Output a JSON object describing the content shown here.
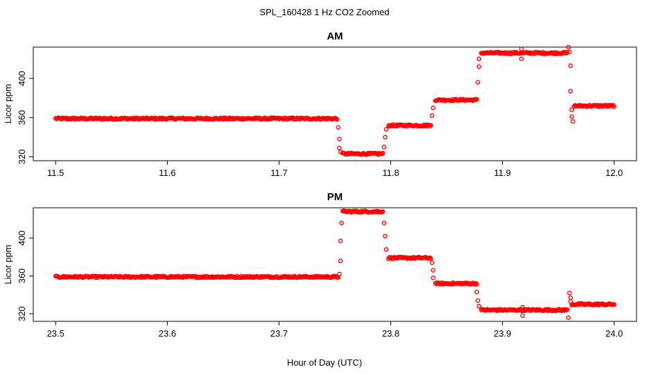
{
  "figure": {
    "title": "SPL_160428  1 Hz CO2 Zoomed",
    "xlabel": "Hour of Day (UTC)"
  },
  "chart_data": [
    {
      "type": "scatter",
      "title": "AM",
      "xlabel": "Hour of Day (UTC)",
      "ylabel": "Licor ppm",
      "xlim": [
        11.5,
        12.0
      ],
      "ylim": [
        316,
        432
      ],
      "xticks": [
        "11.5",
        "11.6",
        "11.7",
        "11.8",
        "11.9",
        "12.0"
      ],
      "yticks": [
        "320",
        "360",
        "400"
      ],
      "marker_color": "#ff0000",
      "grid": false,
      "segments": [
        {
          "x_start": 11.5,
          "x_end": 11.752,
          "y": 359
        },
        {
          "x_start": 11.757,
          "x_end": 11.793,
          "y": 323
        },
        {
          "x_start": 11.798,
          "x_end": 11.836,
          "y": 352
        },
        {
          "x_start": 11.84,
          "x_end": 11.877,
          "y": 378
        },
        {
          "x_start": 11.881,
          "x_end": 11.958,
          "y": 426
        },
        {
          "x_start": 11.964,
          "x_end": 12.0,
          "y": 372
        }
      ],
      "points": [
        {
          "x": 11.753,
          "y": 350
        },
        {
          "x": 11.754,
          "y": 338
        },
        {
          "x": 11.754,
          "y": 329
        },
        {
          "x": 11.755,
          "y": 325
        },
        {
          "x": 11.794,
          "y": 330
        },
        {
          "x": 11.795,
          "y": 340
        },
        {
          "x": 11.796,
          "y": 348
        },
        {
          "x": 11.837,
          "y": 362
        },
        {
          "x": 11.838,
          "y": 370
        },
        {
          "x": 11.878,
          "y": 396
        },
        {
          "x": 11.879,
          "y": 412
        },
        {
          "x": 11.879,
          "y": 420
        },
        {
          "x": 11.917,
          "y": 420
        },
        {
          "x": 11.917,
          "y": 430
        },
        {
          "x": 11.959,
          "y": 432
        },
        {
          "x": 11.96,
          "y": 427
        },
        {
          "x": 11.961,
          "y": 413
        },
        {
          "x": 11.961,
          "y": 387
        },
        {
          "x": 11.962,
          "y": 368
        },
        {
          "x": 11.962,
          "y": 361
        },
        {
          "x": 11.963,
          "y": 356
        }
      ]
    },
    {
      "type": "scatter",
      "title": "PM",
      "xlabel": "Hour of Day (UTC)",
      "ylabel": "Licor ppm",
      "xlim": [
        23.5,
        24.0
      ],
      "ylim": [
        312,
        432
      ],
      "xticks": [
        "23.5",
        "23.6",
        "23.7",
        "23.8",
        "23.9",
        "24.0"
      ],
      "yticks": [
        "320",
        "360",
        "400"
      ],
      "marker_color": "#ff0000",
      "grid": false,
      "segments": [
        {
          "x_start": 23.5,
          "x_end": 23.753,
          "y": 359
        },
        {
          "x_start": 23.757,
          "x_end": 23.793,
          "y": 428
        },
        {
          "x_start": 23.798,
          "x_end": 23.836,
          "y": 379
        },
        {
          "x_start": 23.84,
          "x_end": 23.877,
          "y": 352
        },
        {
          "x_start": 23.881,
          "x_end": 23.958,
          "y": 324
        },
        {
          "x_start": 23.962,
          "x_end": 24.0,
          "y": 330
        }
      ],
      "points": [
        {
          "x": 23.754,
          "y": 362
        },
        {
          "x": 23.755,
          "y": 376
        },
        {
          "x": 23.755,
          "y": 397
        },
        {
          "x": 23.756,
          "y": 416
        },
        {
          "x": 23.794,
          "y": 416
        },
        {
          "x": 23.795,
          "y": 402
        },
        {
          "x": 23.796,
          "y": 388
        },
        {
          "x": 23.837,
          "y": 374
        },
        {
          "x": 23.838,
          "y": 366
        },
        {
          "x": 23.838,
          "y": 358
        },
        {
          "x": 23.877,
          "y": 343
        },
        {
          "x": 23.878,
          "y": 334
        },
        {
          "x": 23.879,
          "y": 328
        },
        {
          "x": 23.918,
          "y": 318
        },
        {
          "x": 23.918,
          "y": 327
        },
        {
          "x": 23.959,
          "y": 316
        },
        {
          "x": 23.96,
          "y": 342
        },
        {
          "x": 23.961,
          "y": 337
        },
        {
          "x": 23.961,
          "y": 333
        }
      ]
    }
  ]
}
